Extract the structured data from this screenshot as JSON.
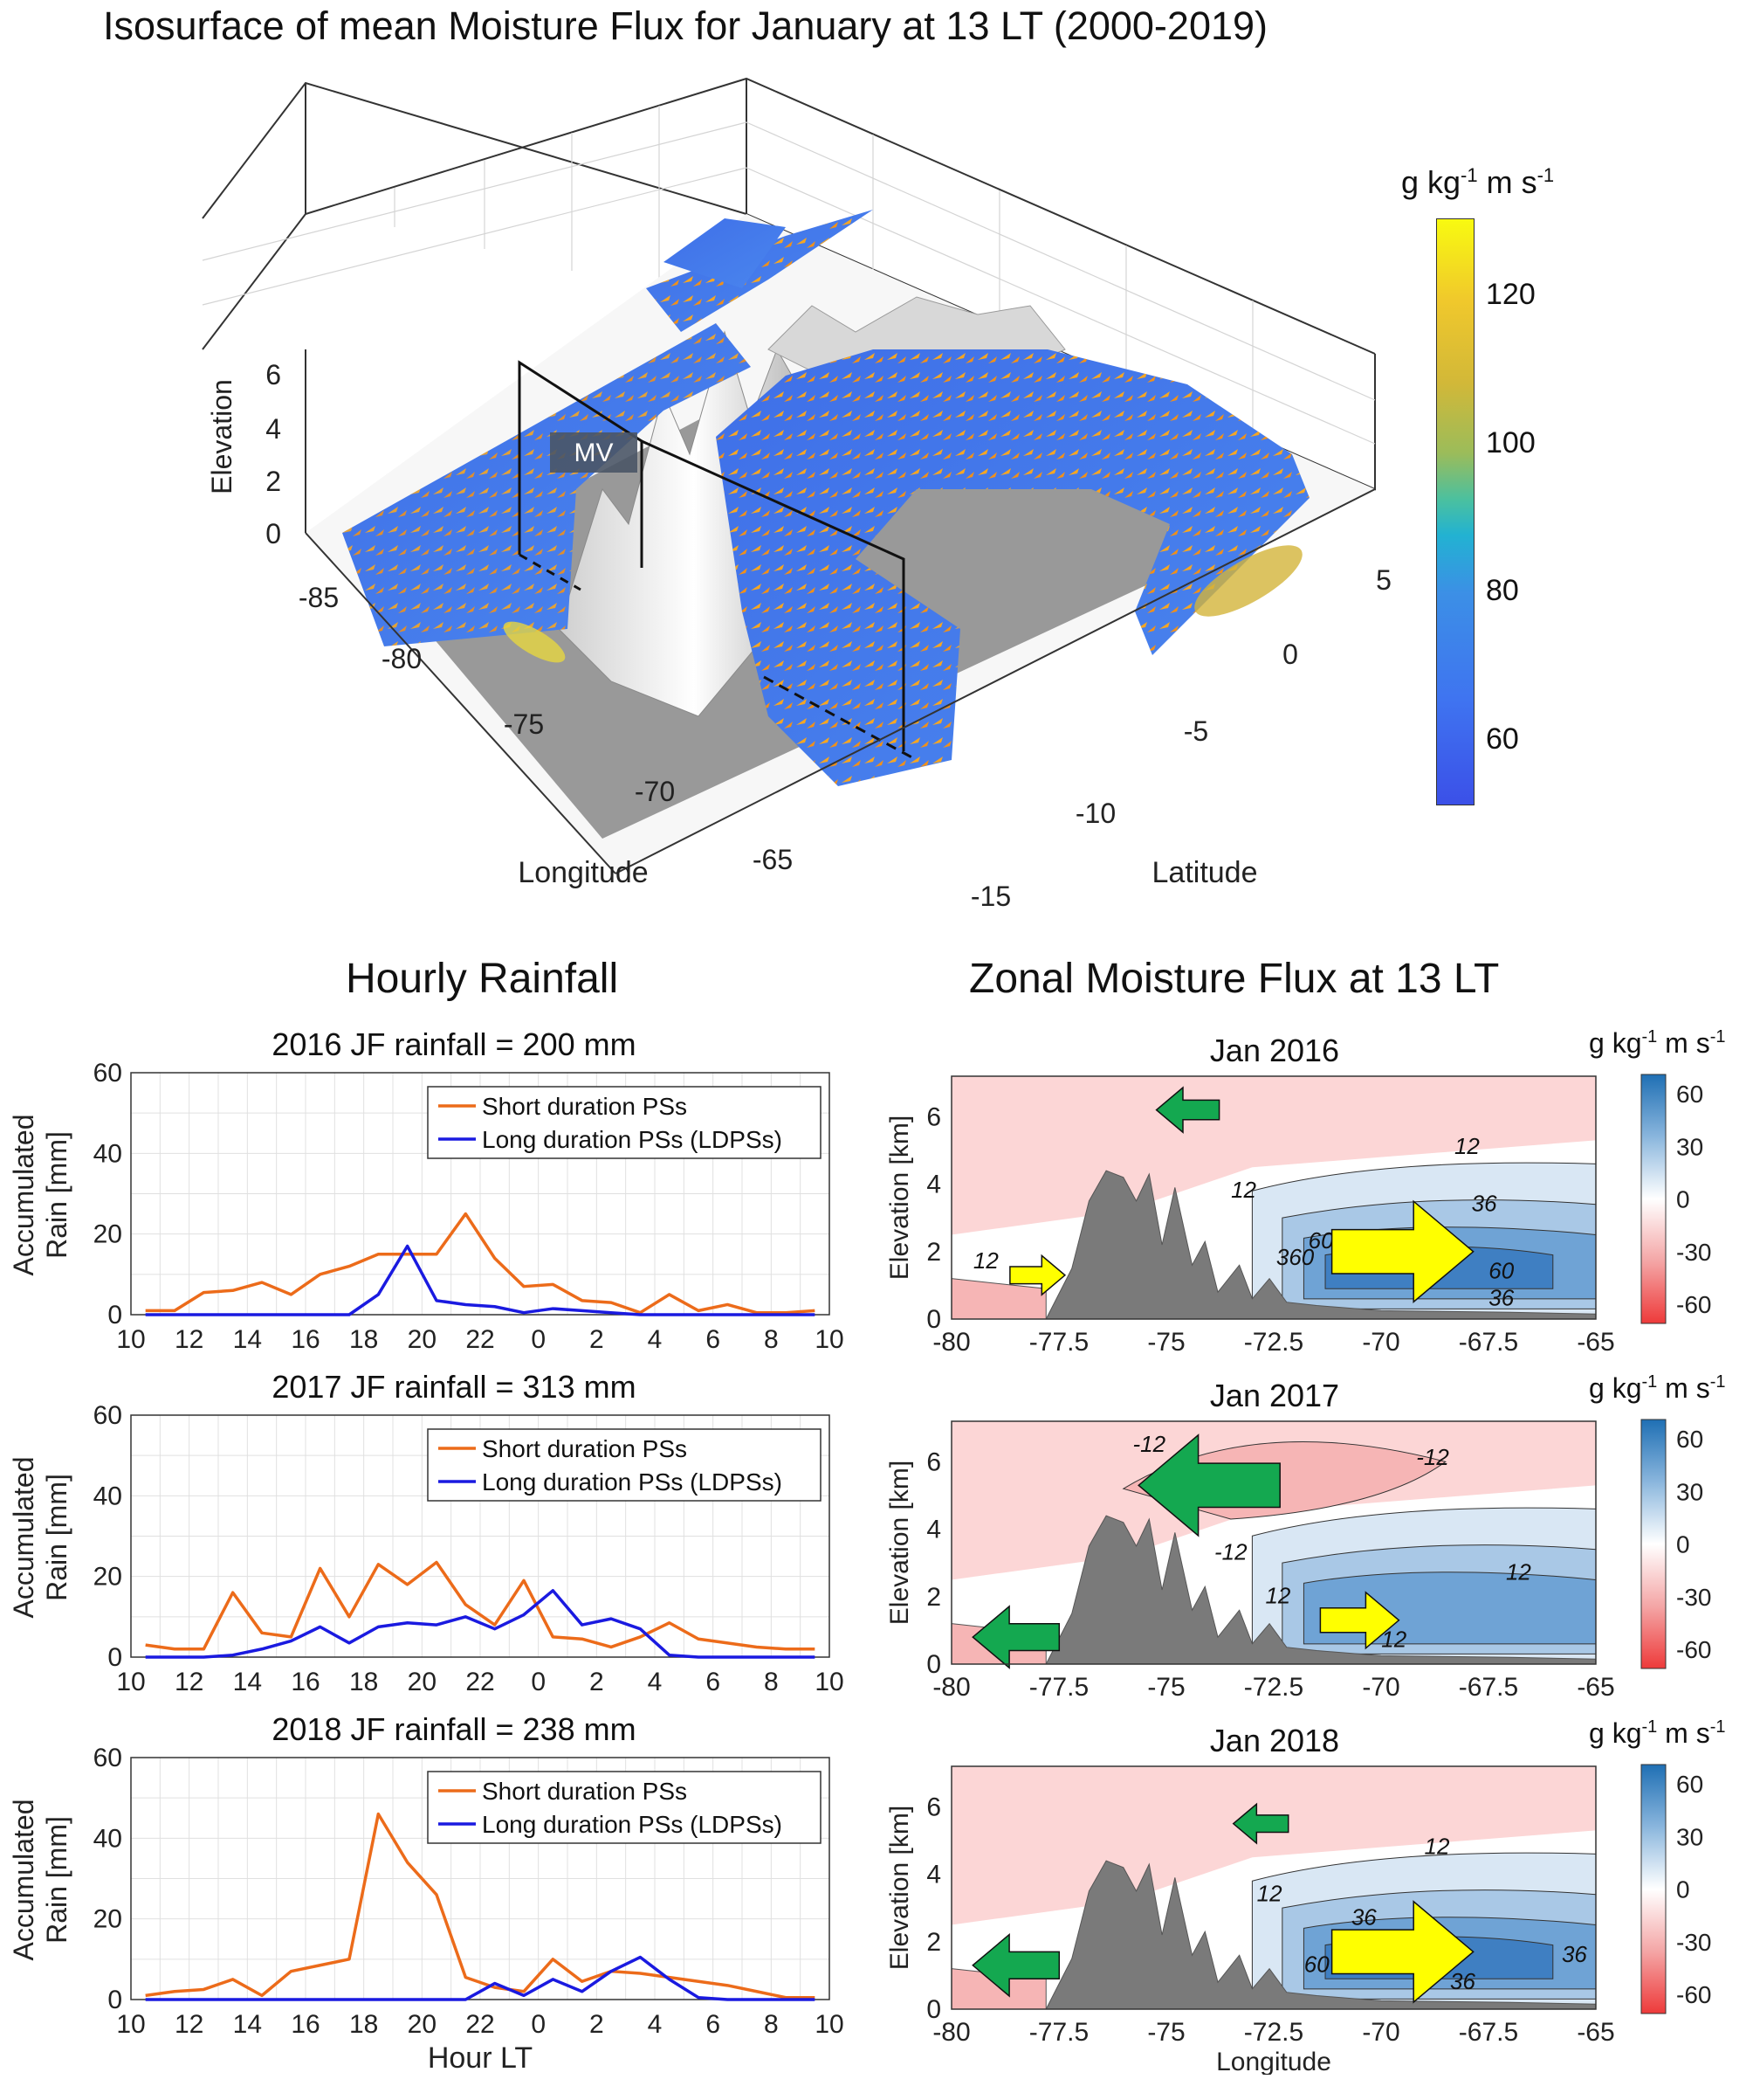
{
  "main_title": "Isosurface of mean Moisture Flux for January at 13 LT (2000-2019)",
  "iso": {
    "zlabel": "Elevation",
    "xlabel": "Longitude",
    "ylabel": "Latitude",
    "z_ticks": [
      "0",
      "2",
      "4",
      "6"
    ],
    "x_ticks": [
      "-85",
      "-80",
      "-75",
      "-70",
      "-65"
    ],
    "y_ticks": [
      "-15",
      "-10",
      "-5",
      "0",
      "5"
    ],
    "mv_label": "MV",
    "colorbar": {
      "title_base": "g kg",
      "title_exp1": "-1",
      "title_mid": " m s",
      "title_exp2": "-1",
      "ticks": [
        "60",
        "80",
        "100",
        "120"
      ],
      "range": [
        50,
        130
      ]
    }
  },
  "rain_header": "Hourly Rainfall",
  "flux_header": "Zonal Moisture Flux at 13 LT",
  "rain_common": {
    "ylabel_line1": "Accumulated",
    "ylabel_line2": "Rain [mm]",
    "xlabel": "Hour LT",
    "x_ticks": [
      "10",
      "12",
      "14",
      "16",
      "18",
      "20",
      "22",
      "0",
      "2",
      "4",
      "6",
      "8",
      "10"
    ],
    "y_ticks": [
      "0",
      "20",
      "40",
      "60"
    ],
    "legend_short": "Short duration PSs",
    "legend_long": "Long duration PSs (LDPSs)",
    "short_color": "#ec6b1a",
    "long_color": "#1a1ae0"
  },
  "flux_common": {
    "ylabel": "Elevation [km]",
    "xlabel": "Longitude",
    "x_ticks": [
      "-80",
      "-77.5",
      "-75",
      "-72.5",
      "-70",
      "-67.5",
      "-65"
    ],
    "y_ticks": [
      "0",
      "2",
      "4",
      "6"
    ],
    "cb_title_base": "g kg",
    "cb_exp1": "-1",
    "cb_mid": " m s",
    "cb_exp2": "-1",
    "cb_ticks": [
      "60",
      "30",
      "0",
      "-30",
      "-60"
    ]
  },
  "chart_data": [
    {
      "type": "line",
      "title": "2016  JF rainfall = 200 mm",
      "xlabel": "",
      "ylabel": "Accumulated Rain [mm]",
      "ylim": [
        0,
        60
      ],
      "x": [
        "10:30",
        "11:30",
        "12:30",
        "13:30",
        "14:30",
        "15:30",
        "16:30",
        "17:30",
        "18:30",
        "19:30",
        "20:30",
        "21:30",
        "22:30",
        "23:30",
        "0:30",
        "1:30",
        "2:30",
        "3:30",
        "4:30",
        "5:30",
        "6:30",
        "7:30",
        "8:30",
        "9:30"
      ],
      "series": [
        {
          "name": "Short duration PSs",
          "values": [
            1,
            1,
            5.5,
            6,
            8,
            5,
            10,
            12,
            15,
            15,
            15,
            25,
            14,
            7,
            7.5,
            3.5,
            3,
            0.5,
            5,
            1,
            2.5,
            0.5,
            0.5,
            1
          ]
        },
        {
          "name": "Long duration PSs (LDPSs)",
          "values": [
            0,
            0,
            0,
            0,
            0,
            0,
            0,
            0,
            5,
            17,
            3.5,
            2.5,
            2,
            0.5,
            1.5,
            1,
            0.5,
            0,
            0,
            0,
            0,
            0,
            0,
            0
          ]
        }
      ]
    },
    {
      "type": "line",
      "title": "2017 JF rainfall = 313 mm",
      "xlabel": "",
      "ylabel": "Accumulated Rain [mm]",
      "ylim": [
        0,
        60
      ],
      "x": [
        "10:30",
        "11:30",
        "12:30",
        "13:30",
        "14:30",
        "15:30",
        "16:30",
        "17:30",
        "18:30",
        "19:30",
        "20:30",
        "21:30",
        "22:30",
        "23:30",
        "0:30",
        "1:30",
        "2:30",
        "3:30",
        "4:30",
        "5:30",
        "6:30",
        "7:30",
        "8:30",
        "9:30"
      ],
      "series": [
        {
          "name": "Short duration PSs",
          "values": [
            3,
            2,
            2,
            16,
            6,
            5,
            22,
            10,
            23,
            18,
            23.5,
            13,
            8,
            19,
            5,
            4.5,
            2.5,
            5,
            8.5,
            4.5,
            3.5,
            2.5,
            2,
            2
          ]
        },
        {
          "name": "Long duration PSs (LDPSs)",
          "values": [
            0,
            0,
            0,
            0.5,
            2,
            4,
            7.5,
            3.5,
            7.5,
            8.5,
            8,
            10,
            7,
            10.5,
            16.5,
            8,
            9.5,
            7,
            0.5,
            0,
            0,
            0,
            0,
            0
          ]
        }
      ]
    },
    {
      "type": "line",
      "title": "2018  JF rainfall = 238 mm",
      "xlabel": "Hour LT",
      "ylabel": "Accumulated Rain [mm]",
      "ylim": [
        0,
        60
      ],
      "x": [
        "10:30",
        "11:30",
        "12:30",
        "13:30",
        "14:30",
        "15:30",
        "16:30",
        "17:30",
        "18:30",
        "19:30",
        "20:30",
        "21:30",
        "22:30",
        "23:30",
        "0:30",
        "1:30",
        "2:30",
        "3:30",
        "4:30",
        "5:30",
        "6:30",
        "7:30",
        "8:30",
        "9:30"
      ],
      "series": [
        {
          "name": "Short duration PSs",
          "values": [
            1,
            2,
            2.5,
            5,
            1,
            7,
            8.5,
            10,
            46,
            34,
            26,
            5.5,
            3,
            2,
            10,
            4.5,
            7,
            6.5,
            5.5,
            4.5,
            3.5,
            2,
            0.5,
            0.5
          ]
        },
        {
          "name": "Long duration PSs (LDPSs)",
          "values": [
            0,
            0,
            0,
            0,
            0,
            0,
            0,
            0,
            0,
            0,
            0,
            0,
            4,
            1,
            5,
            2,
            7,
            10.5,
            5,
            0.5,
            0,
            0,
            0,
            0
          ]
        }
      ]
    },
    {
      "type": "heatmap",
      "title": "Jan 2016",
      "xlabel": "",
      "ylabel": "Elevation [km]",
      "xlim": [
        -80,
        -65
      ],
      "ylim": [
        0,
        7.2
      ],
      "contour_labels": [
        "12",
        "12",
        "12",
        "36",
        "60",
        "60",
        "36",
        "360"
      ]
    },
    {
      "type": "heatmap",
      "title": "Jan 2017",
      "xlabel": "",
      "ylabel": "Elevation [km]",
      "xlim": [
        -80,
        -65
      ],
      "ylim": [
        0,
        7.2
      ],
      "contour_labels": [
        "-12",
        "-12",
        "-12",
        "12",
        "12",
        "12"
      ]
    },
    {
      "type": "heatmap",
      "title": "Jan 2018",
      "xlabel": "Longitude",
      "ylabel": "Elevation [km]",
      "xlim": [
        -80,
        -65
      ],
      "ylim": [
        0,
        7.2
      ],
      "contour_labels": [
        "12",
        "12",
        "36",
        "36",
        "36",
        "60"
      ]
    }
  ]
}
